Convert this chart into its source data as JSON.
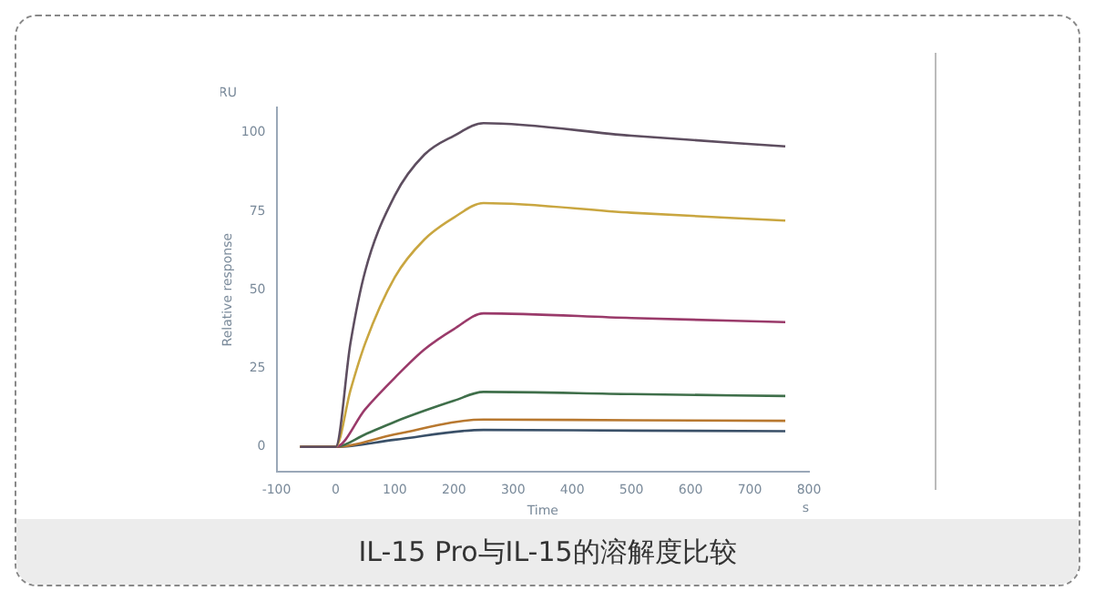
{
  "chart_data": {
    "type": "line",
    "xlabel": "Time",
    "ylabel": "Relative response",
    "annotations": [
      "RU",
      "s",
      "IL-15 Pro与IL-15的溶解度比较"
    ],
    "xlim": [
      -100,
      800
    ],
    "xticks": [
      -100,
      0,
      100,
      200,
      300,
      400,
      500,
      600,
      700,
      800
    ],
    "ylim": [
      -8,
      108
    ],
    "yticks": [
      0,
      25,
      50,
      75,
      100
    ],
    "grid": false,
    "legend": false,
    "marker": "none",
    "line_style": "solid",
    "series": [
      {
        "color": "#5e4e60",
        "x": [
          -60,
          0,
          25,
          50,
          100,
          150,
          200,
          250,
          500,
          760
        ],
        "values": [
          0,
          0,
          33,
          56,
          80,
          93,
          99,
          103,
          99,
          95.6
        ]
      },
      {
        "color": "#c9a640",
        "x": [
          -60,
          0,
          25,
          50,
          100,
          150,
          200,
          250,
          500,
          760
        ],
        "values": [
          0,
          0,
          18,
          33,
          54,
          66,
          73,
          77.6,
          74.5,
          72
        ]
      },
      {
        "color": "#9a3a6a",
        "x": [
          -60,
          0,
          50,
          100,
          150,
          200,
          250,
          500,
          760
        ],
        "values": [
          0,
          0,
          12,
          22,
          31,
          37.5,
          42.5,
          41,
          39.7
        ]
      },
      {
        "color": "#3f6f4a",
        "x": [
          -60,
          0,
          50,
          100,
          150,
          200,
          250,
          500,
          760
        ],
        "values": [
          0,
          0,
          4,
          8,
          11.5,
          14.7,
          17.5,
          16.8,
          16.2
        ]
      },
      {
        "color": "#b8782f",
        "x": [
          -60,
          0,
          100,
          250,
          500,
          760
        ],
        "values": [
          0,
          0,
          4,
          8.7,
          8.5,
          8.3
        ]
      },
      {
        "color": "#3a5068",
        "x": [
          -60,
          0,
          100,
          250,
          500,
          760
        ],
        "values": [
          0,
          0,
          2.3,
          5.4,
          5.2,
          5
        ]
      }
    ]
  }
}
